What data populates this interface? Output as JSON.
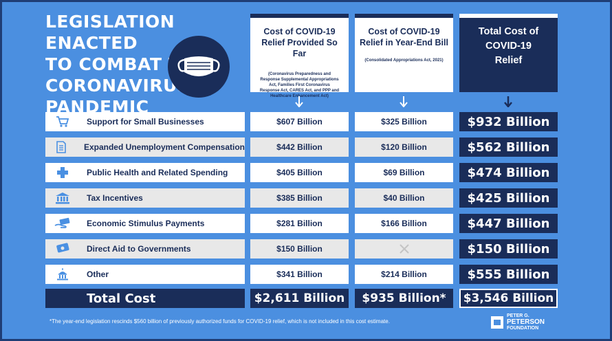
{
  "title_lines": [
    "LEGISLATION ENACTED",
    "TO COMBAT THE",
    "CORONAVIRUS",
    "PANDEMIC"
  ],
  "columns": [
    {
      "heading": "Cost of COVID-19 Relief Provided So Far",
      "subtext": "(Coronavirus Preparedness and Response Supplemental Appropriations Act, Families First Coronavirus Response Act, CARES Act, and PPP and Healthcare Enhancement Act)"
    },
    {
      "heading": "Cost of COVID-19 Relief in Year-End Bill",
      "subtext": "(Consolidated Appropriations Act, 2021)"
    },
    {
      "heading": "Total Cost of COVID-19 Relief",
      "subtext": ""
    }
  ],
  "rows": [
    {
      "label": "Support for Small Businesses",
      "icon": "shopping-cart-icon",
      "so_far": "$607 Billion",
      "year_end": "$325 Billion",
      "total": "$932 Billion"
    },
    {
      "label": "Expanded Unemployment Compensation",
      "icon": "document-icon",
      "so_far": "$442 Billion",
      "year_end": "$120 Billion",
      "total": "$562 Billion"
    },
    {
      "label": "Public Health and Related Spending",
      "icon": "medical-cross-icon",
      "so_far": "$405 Billion",
      "year_end": "$69 Billion",
      "total": "$474 Billion"
    },
    {
      "label": "Tax Incentives",
      "icon": "bank-building-icon",
      "so_far": "$385 Billion",
      "year_end": "$40 Billion",
      "total": "$425 Billion"
    },
    {
      "label": "Economic Stimulus Payments",
      "icon": "money-hand-icon",
      "so_far": "$281 Billion",
      "year_end": "$166 Billion",
      "total": "$447 Billion"
    },
    {
      "label": "Direct Aid to Governments",
      "icon": "cash-icon",
      "so_far": "$150 Billion",
      "year_end": "",
      "total": "$150 Billion"
    },
    {
      "label": "Other",
      "icon": "capitol-building-icon",
      "so_far": "$341 Billion",
      "year_end": "$214 Billion",
      "total": "$555 Billion"
    }
  ],
  "totals": {
    "label": "Total Cost",
    "so_far": "$2,611 Billion",
    "year_end": "$935 Billion*",
    "total": "$3,546 Billion"
  },
  "footnote": "*The year-end legislation rescinds $560 billion of previously authorized funds for COVID-19 relief, which is not included in this cost estimate.",
  "logo": {
    "line1": "PETER G.",
    "line2": "PETERSON",
    "line3": "FOUNDATION"
  },
  "colors": {
    "background": "#4b8fe0",
    "navy": "#1a2d59",
    "row_alt": "#e8e8e8",
    "white": "#ffffff"
  }
}
